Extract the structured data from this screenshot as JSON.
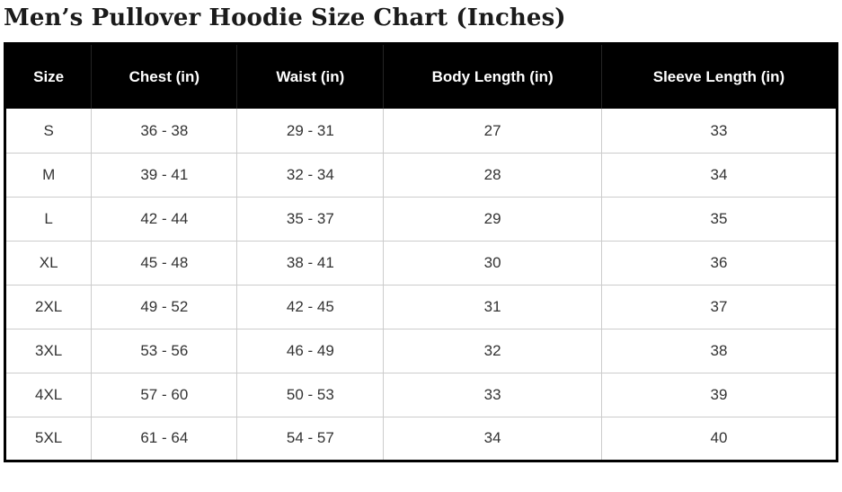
{
  "page": {
    "title": "Men’s Pullover Hoodie Size Chart (Inches)"
  },
  "colors": {
    "header_background": "#000000",
    "header_text": "#ffffff",
    "body_text": "#333333",
    "grid_line": "#cccccc",
    "outer_border": "#000000",
    "title_text": "#1b1b1b",
    "page_background": "#ffffff"
  },
  "chart_data": {
    "type": "table",
    "title": "Men’s Pullover Hoodie Size Chart (Inches)",
    "columns": [
      "Size",
      "Chest (in)",
      "Waist (in)",
      "Body Length (in)",
      "Sleeve Length (in)"
    ],
    "rows": [
      [
        "S",
        "36 - 38",
        "29 - 31",
        "27",
        "33"
      ],
      [
        "M",
        "39 - 41",
        "32 - 34",
        "28",
        "34"
      ],
      [
        "L",
        "42 - 44",
        "35 - 37",
        "29",
        "35"
      ],
      [
        "XL",
        "45 - 48",
        "38 - 41",
        "30",
        "36"
      ],
      [
        "2XL",
        "49 - 52",
        "42 - 45",
        "31",
        "37"
      ],
      [
        "3XL",
        "53 - 56",
        "46 - 49",
        "32",
        "38"
      ],
      [
        "4XL",
        "57 - 60",
        "50 - 53",
        "33",
        "39"
      ],
      [
        "5XL",
        "61 - 64",
        "54 - 57",
        "34",
        "40"
      ]
    ]
  }
}
